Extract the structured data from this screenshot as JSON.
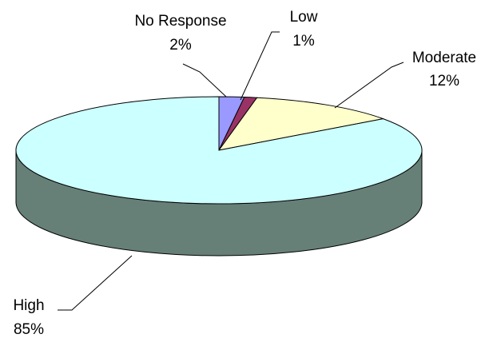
{
  "chart_data": {
    "type": "pie",
    "title": "",
    "categories": [
      "No Response",
      "Low",
      "Moderate",
      "High"
    ],
    "values": [
      2,
      1,
      12,
      85
    ],
    "percent_labels": [
      "2%",
      "1%",
      "12%",
      "85%"
    ],
    "colors": [
      "#9999ff",
      "#993366",
      "#ffffcc",
      "#ccffff"
    ],
    "side_color": "#668078",
    "style": "3d",
    "legend": "none"
  }
}
